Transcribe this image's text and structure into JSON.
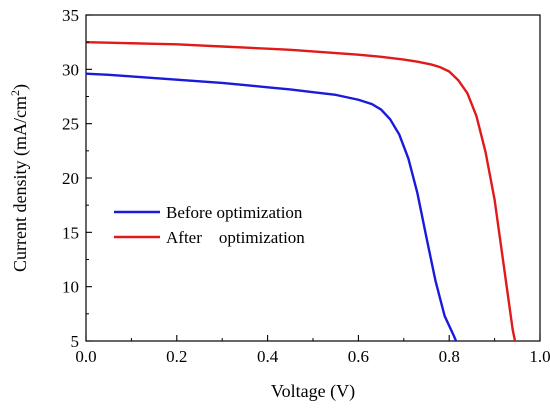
{
  "chart_data": {
    "type": "line",
    "title": "",
    "xlabel": "Voltage (V)",
    "ylabel": "Current density (mA/cm",
    "ylabel_sup": "2",
    "ylabel_end": ")",
    "xlim": [
      0.0,
      1.0
    ],
    "ylim": [
      5,
      35
    ],
    "xticks": [
      0.0,
      0.2,
      0.4,
      0.6,
      0.8,
      1.0
    ],
    "xtick_labels": [
      "0.0",
      "0.2",
      "0.4",
      "0.6",
      "0.8",
      "1.0"
    ],
    "yticks": [
      5,
      10,
      15,
      20,
      25,
      30,
      35
    ],
    "ytick_labels": [
      "5",
      "10",
      "15",
      "20",
      "25",
      "30",
      "35"
    ],
    "grid": false,
    "legend_position": "center-left",
    "series": [
      {
        "name": "Before optimization",
        "color": "#1a1adb",
        "x": [
          0.0,
          0.05,
          0.1,
          0.15,
          0.2,
          0.25,
          0.3,
          0.35,
          0.4,
          0.45,
          0.5,
          0.55,
          0.6,
          0.63,
          0.65,
          0.67,
          0.69,
          0.71,
          0.73,
          0.75,
          0.77,
          0.79,
          0.81,
          0.815
        ],
        "y": [
          29.6,
          29.5,
          29.35,
          29.2,
          29.05,
          28.9,
          28.75,
          28.55,
          28.35,
          28.15,
          27.9,
          27.65,
          27.2,
          26.8,
          26.3,
          25.4,
          24.0,
          21.8,
          18.6,
          14.5,
          10.5,
          7.3,
          5.5,
          5.0
        ]
      },
      {
        "name": "After    optimization",
        "color": "#e01a1a",
        "x": [
          0.0,
          0.05,
          0.1,
          0.15,
          0.2,
          0.25,
          0.3,
          0.35,
          0.4,
          0.45,
          0.5,
          0.55,
          0.6,
          0.65,
          0.7,
          0.73,
          0.76,
          0.78,
          0.8,
          0.82,
          0.84,
          0.86,
          0.88,
          0.9,
          0.92,
          0.94,
          0.945
        ],
        "y": [
          32.5,
          32.45,
          32.4,
          32.35,
          32.3,
          32.2,
          32.1,
          32.0,
          31.9,
          31.8,
          31.65,
          31.5,
          31.35,
          31.15,
          30.9,
          30.7,
          30.45,
          30.2,
          29.8,
          29.0,
          27.8,
          25.7,
          22.4,
          18.0,
          12.0,
          6.0,
          5.0
        ]
      }
    ]
  }
}
